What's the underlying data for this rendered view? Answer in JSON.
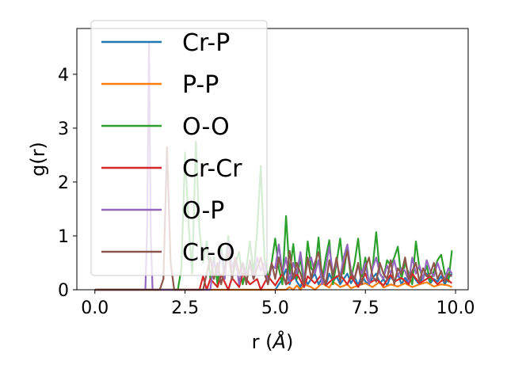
{
  "chart_data": {
    "type": "line",
    "title": "",
    "xlabel_prefix": "r (",
    "xlabel_unit": "Å",
    "xlabel_suffix": ")",
    "ylabel": "g(r)",
    "xlim": [
      -0.5,
      10.35
    ],
    "ylim": [
      0,
      4.85
    ],
    "xticks": [
      0.0,
      2.5,
      5.0,
      7.5,
      10.0
    ],
    "xtick_labels": [
      "0.0",
      "2.5",
      "5.0",
      "7.5",
      "10.0"
    ],
    "yticks": [
      0,
      1,
      2,
      3,
      4
    ],
    "ytick_labels": [
      "0",
      "1",
      "2",
      "3",
      "4"
    ],
    "grid": false,
    "legend_position": "upper-left",
    "series": [
      {
        "name": "Cr-P",
        "color": "#1f77b4",
        "x": [
          0.0,
          5.0,
          5.1,
          5.2,
          5.3,
          5.4,
          5.5,
          5.6,
          5.7,
          5.8,
          5.9,
          6.0,
          6.1,
          6.2,
          6.3,
          6.4,
          6.5,
          6.6,
          6.7,
          6.8,
          6.9,
          7.0,
          7.1,
          7.2,
          7.3,
          7.4,
          7.5,
          7.6,
          7.7,
          7.8,
          7.9,
          8.0,
          8.1,
          8.2,
          8.3,
          8.4,
          8.5,
          8.6,
          8.7,
          8.8,
          8.9,
          9.0,
          9.1,
          9.2,
          9.3,
          9.4,
          9.5,
          9.6,
          9.7,
          9.8,
          9.9
        ],
        "y": [
          0,
          0,
          0.1,
          0.2,
          0.38,
          0.1,
          0.3,
          0.15,
          0.05,
          0.25,
          0.1,
          0.2,
          0.3,
          0.1,
          0.22,
          0.08,
          0.3,
          0.15,
          0.25,
          0.1,
          0.2,
          0.3,
          0.12,
          0.24,
          0.08,
          0.28,
          0.15,
          0.1,
          0.22,
          0.3,
          0.12,
          0.2,
          0.08,
          0.25,
          0.15,
          0.3,
          0.1,
          0.22,
          0.12,
          0.28,
          0.18,
          0.1,
          0.25,
          0.3,
          0.12,
          0.2,
          0.15,
          0.25,
          0.1,
          0.22,
          0.3
        ]
      },
      {
        "name": "P-P",
        "color": "#ff7f0e",
        "x": [
          0.0,
          5.3,
          5.4,
          5.5,
          5.6,
          5.7,
          5.8,
          6.0,
          6.1,
          6.3,
          6.5,
          6.6,
          6.8,
          7.0,
          7.1,
          7.3,
          7.5,
          7.7,
          7.9,
          8.0,
          8.2,
          8.4,
          8.6,
          8.8,
          9.0,
          9.2,
          9.4,
          9.6,
          9.8,
          9.9
        ],
        "y": [
          0,
          0,
          0.05,
          0,
          0.08,
          0,
          0.1,
          0.05,
          0,
          0.12,
          0.04,
          0.15,
          0.05,
          0.1,
          0.03,
          0.08,
          0.12,
          0.05,
          0.15,
          0.04,
          0.1,
          0.06,
          0.12,
          0.05,
          0.1,
          0.14,
          0.06,
          0.1,
          0.08,
          0.05
        ]
      },
      {
        "name": "O-O",
        "color": "#2ca02c",
        "x": [
          0.0,
          2.3,
          2.4,
          2.5,
          2.6,
          2.7,
          2.8,
          2.9,
          3.0,
          3.1,
          3.2,
          3.3,
          3.4,
          3.5,
          3.6,
          3.7,
          3.8,
          3.9,
          4.0,
          4.1,
          4.2,
          4.3,
          4.4,
          4.5,
          4.6,
          4.7,
          4.8,
          4.9,
          5.0,
          5.1,
          5.2,
          5.3,
          5.4,
          5.5,
          5.6,
          5.7,
          5.8,
          5.9,
          6.0,
          6.1,
          6.2,
          6.3,
          6.4,
          6.5,
          6.6,
          6.7,
          6.8,
          6.9,
          7.0,
          7.1,
          7.2,
          7.3,
          7.4,
          7.5,
          7.6,
          7.7,
          7.8,
          7.9,
          8.0,
          8.1,
          8.2,
          8.3,
          8.4,
          8.5,
          8.6,
          8.7,
          8.8,
          8.9,
          9.0,
          9.1,
          9.2,
          9.3,
          9.4,
          9.5,
          9.6,
          9.7,
          9.8,
          9.9
        ],
        "y": [
          0,
          0,
          0.4,
          2.55,
          1.2,
          0.3,
          2.75,
          1.1,
          0.5,
          0.9,
          0.2,
          0.6,
          0.1,
          0.8,
          0.3,
          1.0,
          0.2,
          0.5,
          0.7,
          0.1,
          0.4,
          0.9,
          0.3,
          1.1,
          2.3,
          0.6,
          0.2,
          0.5,
          0.95,
          0.4,
          0.1,
          1.37,
          0.3,
          0.85,
          0.2,
          0.6,
          0.05,
          0.9,
          0.4,
          0.3,
          0.97,
          0.2,
          0.6,
          0.92,
          0.1,
          0.5,
          0.95,
          0.3,
          0.8,
          0.2,
          0.5,
          0.95,
          0.25,
          0.6,
          0.1,
          0.4,
          1.07,
          0.3,
          0.2,
          0.55,
          0.45,
          0.6,
          0.8,
          0.2,
          0.5,
          0.3,
          0.1,
          0.9,
          0.4,
          0.2,
          0.45,
          0.15,
          0.35,
          0.55,
          0.65,
          0.3,
          0.15,
          0.73
        ]
      },
      {
        "name": "Cr-Cr",
        "color": "#d62728",
        "x": [
          0.0,
          2.9,
          3.0,
          3.1,
          3.2,
          3.4,
          3.5,
          3.7,
          3.8,
          4.0,
          4.1,
          4.3,
          4.5,
          4.6,
          4.8,
          5.0,
          5.2,
          5.3,
          5.5,
          5.6,
          5.8,
          5.9,
          6.1,
          6.3,
          6.4,
          6.6,
          6.8,
          7.0,
          7.1,
          7.3,
          7.5,
          7.6,
          7.8,
          8.0,
          8.2,
          8.3,
          8.5,
          8.7,
          8.8,
          9.0,
          9.2,
          9.3,
          9.5,
          9.7,
          9.9
        ],
        "y": [
          0,
          0,
          0.25,
          0,
          0.2,
          0.05,
          0.28,
          0,
          0.22,
          0.05,
          0.3,
          0.1,
          0.2,
          0,
          0.25,
          0.08,
          0.3,
          0.1,
          0.2,
          0.3,
          0.05,
          0.25,
          0.12,
          0.3,
          0.08,
          0.2,
          0.28,
          0.1,
          0.25,
          0.05,
          0.3,
          0.12,
          0.2,
          0.08,
          0.28,
          0.15,
          0.22,
          0.1,
          0.3,
          0.12,
          0.2,
          0.25,
          0.1,
          0.22,
          0.12
        ]
      },
      {
        "name": "O-P",
        "color": "#9467bd",
        "x": [
          0.0,
          1.4,
          1.45,
          1.5,
          1.55,
          1.6,
          3.2,
          3.3,
          3.4,
          3.5,
          3.6,
          3.7,
          3.8,
          3.9,
          4.0,
          4.1,
          4.2,
          4.3,
          4.4,
          4.5,
          4.6,
          4.7,
          4.8,
          4.9,
          5.0,
          5.1,
          5.2,
          5.3,
          5.4,
          5.5,
          5.6,
          5.7,
          5.8,
          5.9,
          6.0,
          6.1,
          6.2,
          6.3,
          6.4,
          6.5,
          6.6,
          6.7,
          6.8,
          6.9,
          7.0,
          7.1,
          7.2,
          7.3,
          7.4,
          7.5,
          7.6,
          7.7,
          7.8,
          7.9,
          8.0,
          8.1,
          8.2,
          8.3,
          8.4,
          8.5,
          8.6,
          8.7,
          8.8,
          8.9,
          9.0,
          9.1,
          9.2,
          9.3,
          9.4,
          9.5,
          9.6,
          9.7,
          9.8,
          9.9
        ],
        "y": [
          0,
          0,
          1.2,
          4.6,
          1.0,
          0,
          0,
          0.55,
          0.3,
          0.7,
          0.2,
          0.9,
          0.4,
          0.6,
          0.1,
          0.5,
          0.3,
          0.45,
          0.2,
          0.6,
          0.35,
          0.5,
          0.1,
          0.45,
          0.4,
          0.84,
          0.3,
          0.6,
          0.15,
          0.5,
          0.3,
          0.7,
          0.2,
          0.5,
          0.6,
          0.3,
          0.55,
          0.1,
          0.4,
          0.8,
          0.3,
          0.5,
          0.25,
          0.6,
          0.84,
          0.35,
          0.2,
          0.45,
          0.3,
          0.5,
          0.1,
          0.4,
          0.6,
          0.3,
          0.2,
          0.45,
          0.3,
          0.55,
          0.25,
          0.4,
          0.35,
          0.15,
          0.6,
          0.3,
          0.45,
          0.2,
          0.55,
          0.35,
          0.25,
          0.5,
          0.3,
          0.2,
          0.4,
          0.3
        ]
      },
      {
        "name": "Cr-O",
        "color": "#8c564b",
        "x": [
          0.0,
          1.8,
          1.9,
          2.0,
          2.1,
          2.2,
          3.0,
          3.1,
          3.2,
          3.3,
          3.4,
          3.5,
          3.6,
          3.7,
          3.8,
          3.9,
          4.0,
          4.1,
          4.2,
          4.3,
          4.4,
          4.5,
          4.6,
          4.7,
          4.8,
          4.9,
          5.0,
          5.1,
          5.2,
          5.3,
          5.4,
          5.5,
          5.6,
          5.7,
          5.8,
          5.9,
          6.0,
          6.1,
          6.2,
          6.3,
          6.4,
          6.5,
          6.6,
          6.7,
          6.8,
          6.9,
          7.0,
          7.1,
          7.2,
          7.3,
          7.4,
          7.5,
          7.6,
          7.7,
          7.8,
          7.9,
          8.0,
          8.1,
          8.2,
          8.3,
          8.4,
          8.5,
          8.6,
          8.7,
          8.8,
          8.9,
          9.0,
          9.1,
          9.2,
          9.3,
          9.4,
          9.5,
          9.6,
          9.7,
          9.8,
          9.9
        ],
        "y": [
          0,
          0,
          0.2,
          2.65,
          0.5,
          0,
          0,
          0.3,
          0.6,
          0.2,
          0.5,
          0.1,
          0.4,
          0.7,
          0.2,
          0.6,
          0.3,
          0.5,
          0.1,
          0.55,
          0.2,
          0.4,
          0.6,
          0.3,
          0.1,
          0.5,
          0.2,
          0.6,
          0.3,
          0.1,
          0.72,
          0.2,
          0.5,
          0.3,
          0.1,
          0.6,
          0.2,
          0.5,
          0.7,
          0.3,
          0.1,
          0.55,
          0.25,
          0.6,
          0.15,
          0.45,
          0.72,
          0.3,
          0.2,
          0.5,
          0.1,
          0.4,
          0.6,
          0.25,
          0.15,
          0.5,
          0.3,
          0.2,
          0.55,
          0.1,
          0.4,
          0.3,
          0.6,
          0.2,
          0.35,
          0.5,
          0.15,
          0.4,
          0.25,
          0.3,
          0.5,
          0.2,
          0.35,
          0.15,
          0.3,
          0.25
        ]
      }
    ]
  }
}
